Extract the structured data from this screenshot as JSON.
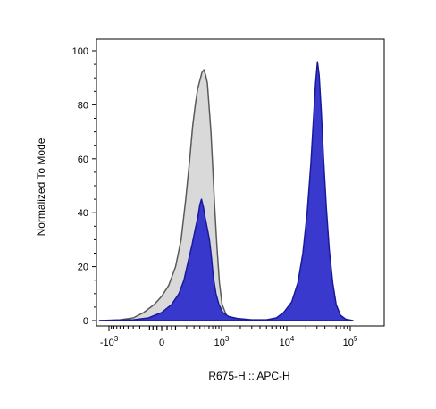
{
  "chart_data": {
    "type": "area",
    "title": "",
    "xlabel": "R675-H :: APC-H",
    "ylabel": "Normalized To Mode",
    "x_scale": "biexponential",
    "x_ticks": [
      {
        "value": -1000,
        "base": "-10",
        "exp": "3"
      },
      {
        "value": 0,
        "base": "0",
        "exp": ""
      },
      {
        "value": 1000,
        "base": "10",
        "exp": "3"
      },
      {
        "value": 10000,
        "base": "10",
        "exp": "4"
      },
      {
        "value": 100000,
        "base": "10",
        "exp": "5"
      }
    ],
    "y_ticks": [
      0,
      20,
      40,
      60,
      80,
      100
    ],
    "ylim": [
      0,
      100
    ],
    "grid": false,
    "legend": "none",
    "series": [
      {
        "fill": "#d9d9d9",
        "stroke": "#5a5a5a",
        "points": [
          [
            -1500,
            0
          ],
          [
            -600,
            0.3
          ],
          [
            -300,
            1
          ],
          [
            -150,
            3
          ],
          [
            -50,
            6
          ],
          [
            0,
            9
          ],
          [
            40,
            13
          ],
          [
            90,
            20
          ],
          [
            140,
            30
          ],
          [
            190,
            45
          ],
          [
            240,
            60
          ],
          [
            280,
            72
          ],
          [
            320,
            80
          ],
          [
            360,
            86
          ],
          [
            400,
            89
          ],
          [
            440,
            92
          ],
          [
            480,
            93
          ],
          [
            520,
            91
          ],
          [
            560,
            88
          ],
          [
            600,
            80
          ],
          [
            650,
            70
          ],
          [
            700,
            57
          ],
          [
            760,
            42
          ],
          [
            830,
            28
          ],
          [
            920,
            14
          ],
          [
            1020,
            6
          ],
          [
            1200,
            2
          ],
          [
            1600,
            0.5
          ],
          [
            3000,
            0
          ]
        ]
      },
      {
        "fill": "#3333cc",
        "stroke": "#1a1a99",
        "points": [
          [
            -1500,
            0
          ],
          [
            -300,
            0.3
          ],
          [
            -100,
            1
          ],
          [
            0,
            3
          ],
          [
            60,
            6
          ],
          [
            120,
            10
          ],
          [
            170,
            15
          ],
          [
            220,
            22
          ],
          [
            270,
            28
          ],
          [
            320,
            34
          ],
          [
            360,
            38
          ],
          [
            400,
            43
          ],
          [
            430,
            45
          ],
          [
            470,
            42
          ],
          [
            510,
            38
          ],
          [
            560,
            34
          ],
          [
            610,
            30
          ],
          [
            660,
            24
          ],
          [
            720,
            16
          ],
          [
            800,
            10
          ],
          [
            900,
            6
          ],
          [
            1050,
            3
          ],
          [
            1300,
            1.5
          ],
          [
            1800,
            0.8
          ],
          [
            3000,
            0.3
          ],
          [
            5000,
            0.3
          ],
          [
            7000,
            1
          ],
          [
            9000,
            3
          ],
          [
            12000,
            7
          ],
          [
            15000,
            14
          ],
          [
            18000,
            25
          ],
          [
            21000,
            40
          ],
          [
            24000,
            58
          ],
          [
            26500,
            75
          ],
          [
            28500,
            88
          ],
          [
            30500,
            96
          ],
          [
            32500,
            91
          ],
          [
            35000,
            78
          ],
          [
            38000,
            60
          ],
          [
            42000,
            42
          ],
          [
            47000,
            26
          ],
          [
            53000,
            14
          ],
          [
            60000,
            6
          ],
          [
            70000,
            2
          ],
          [
            85000,
            0.5
          ],
          [
            110000,
            0
          ]
        ]
      }
    ]
  }
}
